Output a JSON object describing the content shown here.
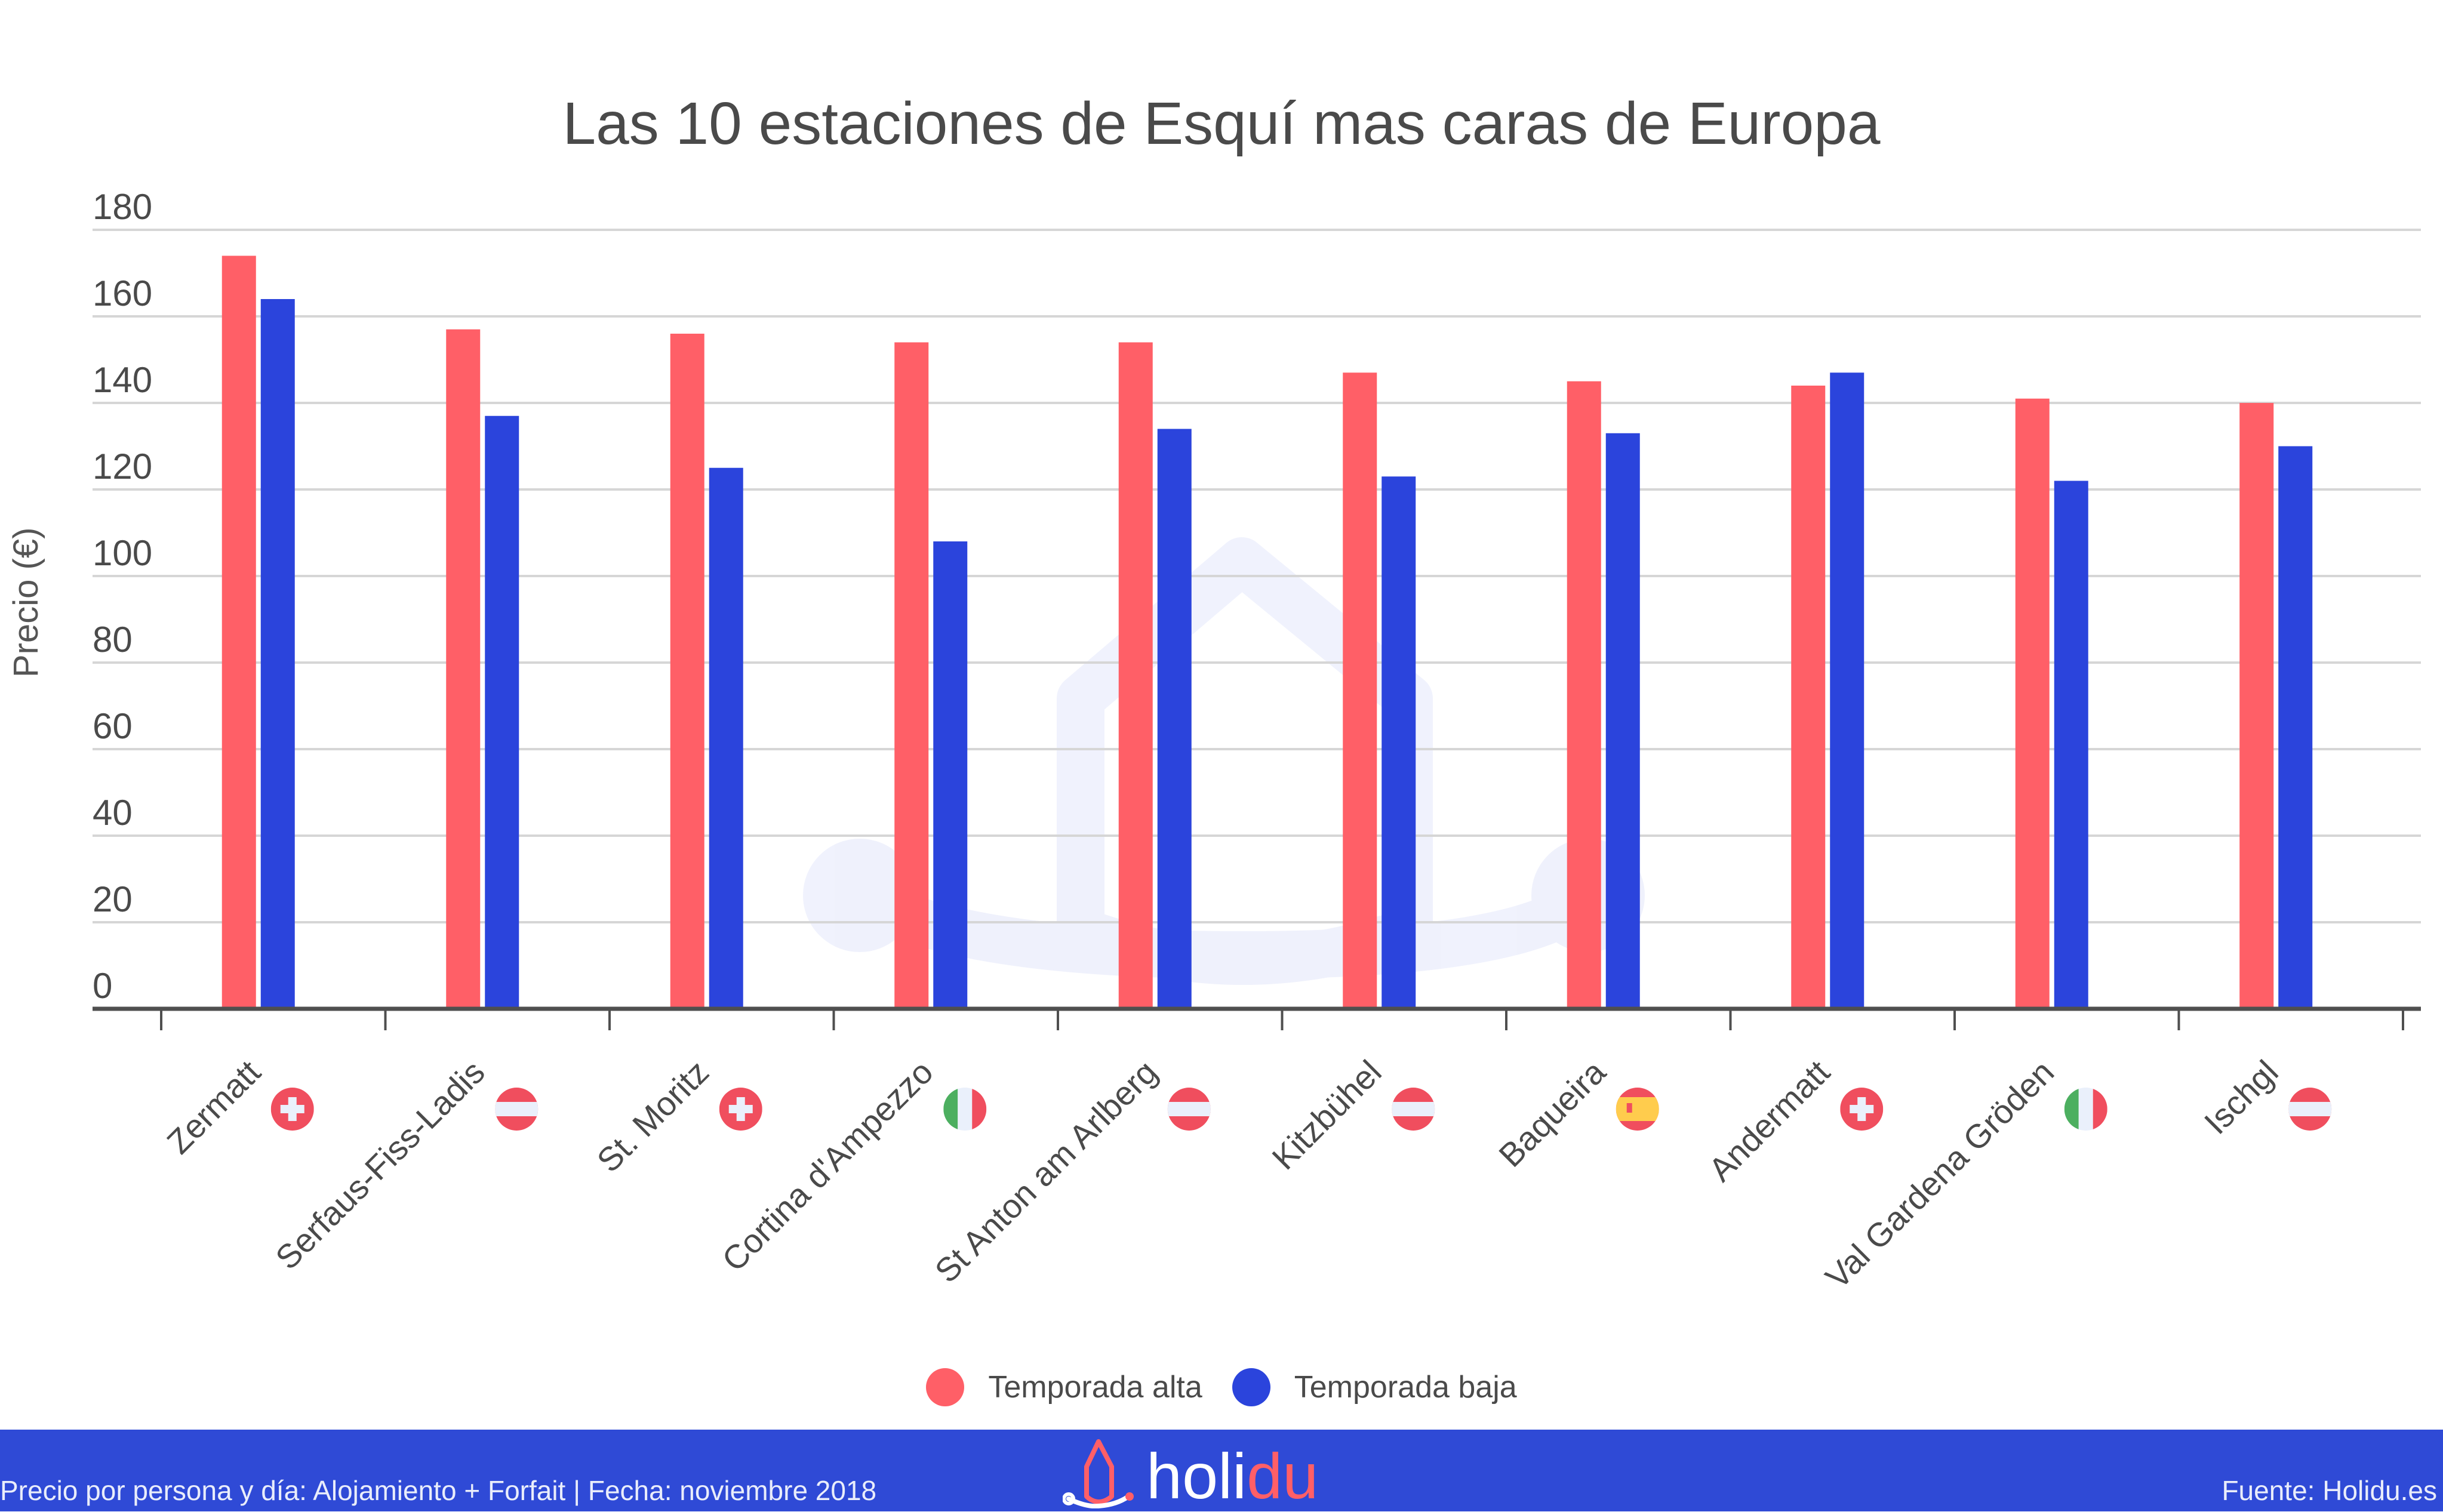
{
  "chart_data": {
    "type": "bar",
    "title": "Las 10 estaciones de Esquí mas caras de Europa",
    "xlabel": "",
    "ylabel": "Precio (€)",
    "ylim": [
      0,
      180
    ],
    "yticks": [
      0,
      20,
      40,
      60,
      80,
      100,
      120,
      140,
      160,
      180
    ],
    "grid": true,
    "legend_position": "bottom-center",
    "categories": [
      "Zermatt",
      "Serfaus-Fiss-Ladis",
      "St. Moritz",
      "Cortina d'Ampezzo",
      "St Anton am Arlberg",
      "Kitzbühel",
      "Baqueira",
      "Andermatt",
      "Val Gardena Gröden",
      "Ischgl"
    ],
    "category_flags": [
      "switzerland",
      "austria",
      "switzerland",
      "italy",
      "austria",
      "austria",
      "spain",
      "switzerland",
      "italy",
      "austria"
    ],
    "series": [
      {
        "name": "Temporada alta",
        "color": "#ff5f67",
        "values": [
          174,
          157,
          156,
          154,
          154,
          147,
          145,
          144,
          141,
          140
        ]
      },
      {
        "name": "Temporada baja",
        "color": "#2b44dc",
        "values": [
          164,
          137,
          125,
          108,
          134,
          123,
          133,
          147,
          122,
          130
        ]
      }
    ]
  },
  "footer": {
    "note": "Precio por persona y día: Alojamiento + Forfait | Fecha: noviembre 2018",
    "brand_main": "holi",
    "brand_accent": "du",
    "source": "Fuente: Holidu.es",
    "background_color": "#2f4ad6"
  },
  "colors": {
    "text": "#4a4a4a",
    "grid": "#d6d6d6",
    "axis": "#4f4f4f",
    "flag_red": "#f04e5e",
    "flag_white": "#eaf0fb",
    "flag_green": "#4caf60",
    "flag_yellow": "#ffcc4d"
  }
}
